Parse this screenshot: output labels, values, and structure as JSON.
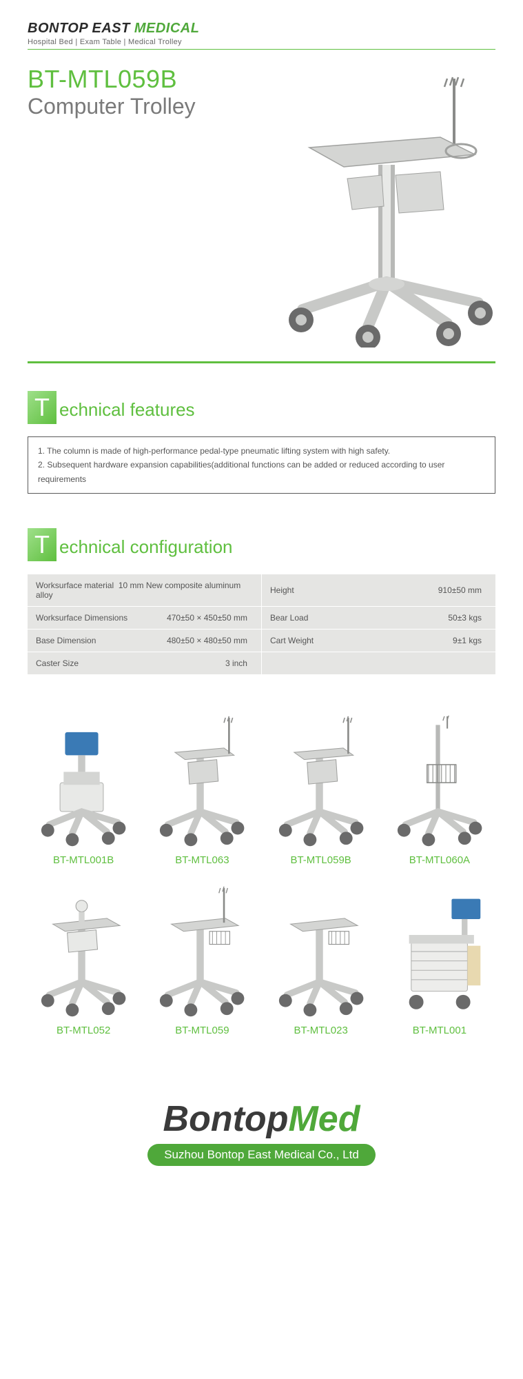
{
  "header": {
    "brand_prefix": "BONTOP EAST",
    "brand_suffix": "MEDICAL",
    "tagline": "Hospital Bed | Exam Table | Medical Trolley"
  },
  "hero": {
    "model": "BT-MTL059B",
    "subtitle": "Computer Trolley"
  },
  "sections": {
    "features_title": "echnical features",
    "config_title": "echnical configuration"
  },
  "features": [
    "1. The column is made of high-performance pedal-type pneumatic lifting system with high safety.",
    "2. Subsequent hardware expansion capabilities(additional functions can be added or reduced according to user requirements"
  ],
  "config": {
    "rows": [
      {
        "l1": "Worksurface material",
        "v1": "10 mm New composite aluminum alloy",
        "l2": "Height",
        "v2": "910±50 mm"
      },
      {
        "l1": "Worksurface Dimensions",
        "v1": "470±50 × 450±50 mm",
        "l2": "Bear Load",
        "v2": "50±3 kgs"
      },
      {
        "l1": "Base Dimension",
        "v1": "480±50 × 480±50 mm",
        "l2": "Cart Weight",
        "v2": "9±1 kgs"
      },
      {
        "l1": "Caster Size",
        "v1": "3  inch",
        "l2": "",
        "v2": ""
      }
    ]
  },
  "products": [
    {
      "name": "BT-MTL001B"
    },
    {
      "name": "BT-MTL063"
    },
    {
      "name": "BT-MTL059B"
    },
    {
      "name": "BT-MTL060A"
    },
    {
      "name": "BT-MTL052"
    },
    {
      "name": "BT-MTL059"
    },
    {
      "name": "BT-MTL023"
    },
    {
      "name": "BT-MTL001"
    }
  ],
  "footer": {
    "brand_prefix": "Bontop",
    "brand_suffix": "Med",
    "company": "Suzhou Bontop East Medical Co., Ltd"
  },
  "colors": {
    "accent": "#5fbf3f",
    "accent_dark": "#4fa83a",
    "text_muted": "#7a7a7a",
    "table_bg": "#e5e5e3",
    "trolley_body": "#c8c9c7",
    "trolley_dark": "#8a8b89",
    "wheel": "#6a6a6a"
  }
}
